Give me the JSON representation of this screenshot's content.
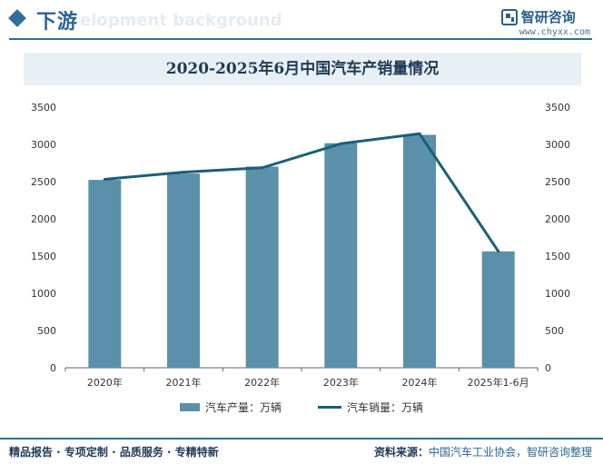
{
  "header": {
    "section_title": "下游",
    "bg_text": "elopment background",
    "brand_name": "智研咨询",
    "brand_url": "www.chyxx.com"
  },
  "chart_data": {
    "type": "bar",
    "title": "2020-2025年6月中国汽车产销量情况",
    "categories": [
      "2020年",
      "2021年",
      "2022年",
      "2023年",
      "2024年",
      "2025年1-6月"
    ],
    "series": [
      {
        "name": "汽车产量：万辆",
        "type": "bar",
        "values": [
          2523,
          2608,
          2702,
          3016,
          3128,
          1563
        ]
      },
      {
        "name": "汽车销量：万辆",
        "type": "line",
        "values": [
          2531,
          2627,
          2686,
          3009,
          3143,
          1565
        ]
      }
    ],
    "ylim": [
      0,
      3500
    ],
    "yticks": [
      0,
      500,
      1000,
      1500,
      2000,
      2500,
      3000,
      3500
    ],
    "y2ticks": [
      0,
      500,
      1000,
      1500,
      2000,
      2500,
      3000,
      3500
    ],
    "legend_position": "bottom",
    "colors": {
      "bar": "#5b90ab",
      "line": "#1a5f7a"
    }
  },
  "footer": {
    "left_text": "精品报告 · 专项定制 · 品质服务 · 专精特新",
    "source_label": "资料来源：",
    "source_text": "中国汽车工业协会，智研咨询整理"
  }
}
